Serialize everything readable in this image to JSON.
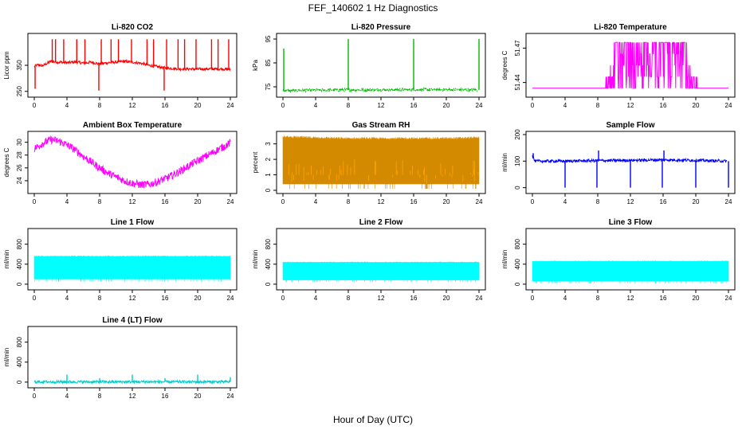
{
  "figure": {
    "title": "FEF_140602  1 Hz Diagnostics",
    "xlabel": "Hour of Day (UTC)"
  },
  "chart_data": [
    {
      "type": "line",
      "title": "Li-820 CO2",
      "ylabel": "Licor ppm",
      "color": "#ff0000",
      "xlim": [
        0,
        24
      ],
      "ylim": [
        240,
        460
      ],
      "xticks": [
        0,
        4,
        8,
        12,
        16,
        20,
        24
      ],
      "yticks": [
        250,
        350
      ],
      "series": [
        {
          "x": [
            0,
            0.5,
            1,
            1.5,
            2,
            3,
            4,
            5,
            6,
            7,
            8,
            9,
            10,
            11,
            12,
            13,
            14,
            15,
            16,
            17,
            18,
            19,
            20,
            21,
            22,
            23,
            24
          ],
          "y": [
            345,
            352,
            348,
            356,
            365,
            362,
            360,
            363,
            358,
            362,
            355,
            360,
            362,
            365,
            362,
            358,
            350,
            345,
            340,
            338,
            336,
            336,
            335,
            336,
            336,
            336,
            334
          ]
        }
      ],
      "spikes": [
        {
          "x": 0.1,
          "y": 260
        },
        {
          "x": 2.2,
          "y": 450
        },
        {
          "x": 2.6,
          "y": 450
        },
        {
          "x": 3.6,
          "y": 450
        },
        {
          "x": 5.2,
          "y": 450
        },
        {
          "x": 6.2,
          "y": 450
        },
        {
          "x": 7.9,
          "y": 253
        },
        {
          "x": 8.2,
          "y": 450
        },
        {
          "x": 9.4,
          "y": 450
        },
        {
          "x": 10.3,
          "y": 450
        },
        {
          "x": 11.9,
          "y": 450
        },
        {
          "x": 13.8,
          "y": 450
        },
        {
          "x": 14.6,
          "y": 450
        },
        {
          "x": 15.9,
          "y": 253
        },
        {
          "x": 16.2,
          "y": 450
        },
        {
          "x": 17.6,
          "y": 450
        },
        {
          "x": 18.4,
          "y": 450
        },
        {
          "x": 19.8,
          "y": 450
        },
        {
          "x": 21.7,
          "y": 450
        },
        {
          "x": 22.5,
          "y": 450
        },
        {
          "x": 23.8,
          "y": 450
        }
      ]
    },
    {
      "type": "line",
      "title": "Li-820 Pressure",
      "ylabel": "kPa",
      "color": "#00bb00",
      "dashed": true,
      "xlim": [
        0,
        24
      ],
      "ylim": [
        72,
        96
      ],
      "xticks": [
        0,
        4,
        8,
        12,
        16,
        20,
        24
      ],
      "yticks": [
        75,
        85,
        95
      ],
      "series": [
        {
          "x": [
            0,
            1,
            4,
            8,
            12,
            16,
            20,
            23.8
          ],
          "y": [
            73.5,
            73.4,
            73.6,
            73.7,
            73.7,
            73.8,
            73.8,
            73.7
          ]
        }
      ],
      "spikes": [
        {
          "x": 0.1,
          "y": 91
        },
        {
          "x": 8.0,
          "y": 95
        },
        {
          "x": 16.0,
          "y": 95
        },
        {
          "x": 24.0,
          "y": 95
        }
      ]
    },
    {
      "type": "line",
      "title": "Li-820 Temperature",
      "ylabel": "degrees C",
      "color": "#ff00ff",
      "xlim": [
        0,
        24
      ],
      "ylim": [
        51.43,
        51.48
      ],
      "xticks": [
        0,
        4,
        8,
        12,
        16,
        20,
        24
      ],
      "yticks": [
        51.44,
        51.47
      ],
      "levels": [
        51.435,
        51.445,
        51.455,
        51.465,
        51.475
      ],
      "series": [
        {
          "x": [
            0,
            7.8,
            8.8,
            9.5,
            10.5,
            11.5,
            12.5,
            13.5,
            14.5,
            15.5,
            16.5,
            17.5,
            18.5,
            19.5,
            20.2,
            21.0,
            24.0
          ],
          "y": [
            51.435,
            51.435,
            51.445,
            51.455,
            51.465,
            51.465,
            51.465,
            51.465,
            51.465,
            51.465,
            51.465,
            51.465,
            51.465,
            51.455,
            51.445,
            51.435,
            51.435
          ]
        }
      ]
    },
    {
      "type": "line",
      "title": "Ambient Box Temperature",
      "ylabel": "degrees C",
      "color": "#ff00ff",
      "xlim": [
        0,
        24
      ],
      "ylim": [
        22.5,
        31.2
      ],
      "xticks": [
        0,
        4,
        8,
        12,
        16,
        20,
        24
      ],
      "yticks": [
        24,
        26,
        28,
        30
      ],
      "series": [
        {
          "x": [
            0,
            1,
            2,
            3,
            4,
            5,
            6,
            7,
            8,
            9,
            10,
            11,
            12,
            13,
            14,
            15,
            16,
            17,
            18,
            19,
            20,
            21,
            22,
            23,
            24
          ],
          "y": [
            29.0,
            29.8,
            30.4,
            30.2,
            29.6,
            28.8,
            27.8,
            26.9,
            26.0,
            25.2,
            24.6,
            24.0,
            23.6,
            23.4,
            23.4,
            23.8,
            24.3,
            24.9,
            25.6,
            26.4,
            27.1,
            27.8,
            28.5,
            29.2,
            29.9
          ]
        }
      ],
      "band": 0.6
    },
    {
      "type": "line",
      "title": "Gas Stream RH",
      "ylabel": "percent",
      "color": "#ffa500",
      "xlim": [
        0,
        24
      ],
      "ylim": [
        0,
        3.6
      ],
      "xticks": [
        0,
        4,
        8,
        12,
        16,
        20,
        24
      ],
      "yticks": [
        0,
        1,
        2,
        3
      ],
      "series": [
        {
          "x": [
            0,
            4,
            8,
            12,
            16,
            20,
            24
          ],
          "y": [
            3.45,
            3.4,
            3.35,
            3.35,
            3.35,
            3.35,
            3.4
          ]
        }
      ],
      "lower": 0.4
    },
    {
      "type": "line",
      "title": "Sample Flow",
      "ylabel": "ml/min",
      "color": "#0000ff",
      "xlim": [
        0,
        24
      ],
      "ylim": [
        -10,
        200
      ],
      "xticks": [
        0,
        4,
        8,
        12,
        16,
        20,
        24
      ],
      "yticks": [
        0,
        100,
        200
      ],
      "series": [
        {
          "x": [
            0,
            0.3,
            4,
            8,
            12,
            16,
            20,
            23.8
          ],
          "y": [
            120,
            100,
            100,
            102,
            103,
            105,
            103,
            100
          ]
        }
      ],
      "spikes": [
        {
          "x": 0.1,
          "y": 130
        },
        {
          "x": 4.0,
          "y": 0
        },
        {
          "x": 7.9,
          "y": 0
        },
        {
          "x": 8.1,
          "y": 140
        },
        {
          "x": 12.0,
          "y": 0
        },
        {
          "x": 15.9,
          "y": 0
        },
        {
          "x": 16.1,
          "y": 140
        },
        {
          "x": 20.0,
          "y": 0
        },
        {
          "x": 24.0,
          "y": 0
        }
      ]
    },
    {
      "type": "area",
      "title": "Line 1 Flow",
      "ylabel": "ml/min",
      "color": "#00ffff",
      "xlim": [
        0,
        24
      ],
      "ylim": [
        -50,
        1050
      ],
      "xticks": [
        0,
        4,
        8,
        12,
        16,
        20,
        24
      ],
      "yticks": [
        0,
        400,
        800
      ],
      "series": [
        {
          "x": [
            0,
            24
          ],
          "y": [
            560,
            560
          ]
        }
      ],
      "lower": 100
    },
    {
      "type": "area",
      "title": "Line 2 Flow",
      "ylabel": "ml/min",
      "color": "#00ffff",
      "xlim": [
        0,
        24
      ],
      "ylim": [
        -50,
        1050
      ],
      "xticks": [
        0,
        4,
        8,
        12,
        16,
        20,
        24
      ],
      "yticks": [
        0,
        400,
        800
      ],
      "series": [
        {
          "x": [
            0,
            24
          ],
          "y": [
            440,
            440
          ]
        }
      ],
      "lower": 80
    },
    {
      "type": "area",
      "title": "Line 3 Flow",
      "ylabel": "ml/min",
      "color": "#00ffff",
      "xlim": [
        0,
        24
      ],
      "ylim": [
        -50,
        1050
      ],
      "xticks": [
        0,
        4,
        8,
        12,
        16,
        20,
        24
      ],
      "yticks": [
        0,
        400,
        800
      ],
      "series": [
        {
          "x": [
            0,
            24
          ],
          "y": [
            460,
            460
          ]
        }
      ],
      "lower": 60
    },
    {
      "type": "line",
      "title": "Line 4 (LT) Flow",
      "ylabel": "ml/min",
      "color": "#00cccc",
      "xlim": [
        0,
        24
      ],
      "ylim": [
        -50,
        1050
      ],
      "xticks": [
        0,
        4,
        8,
        12,
        16,
        20,
        24
      ],
      "yticks": [
        0,
        400,
        800
      ],
      "series": [
        {
          "x": [
            0,
            24
          ],
          "y": [
            5,
            5
          ]
        }
      ],
      "spikes": [
        {
          "x": 4.0,
          "y": 150
        },
        {
          "x": 8.0,
          "y": 80
        },
        {
          "x": 12.0,
          "y": 150
        },
        {
          "x": 16.0,
          "y": 80
        },
        {
          "x": 20.0,
          "y": 150
        },
        {
          "x": 24.0,
          "y": 100
        }
      ]
    }
  ]
}
